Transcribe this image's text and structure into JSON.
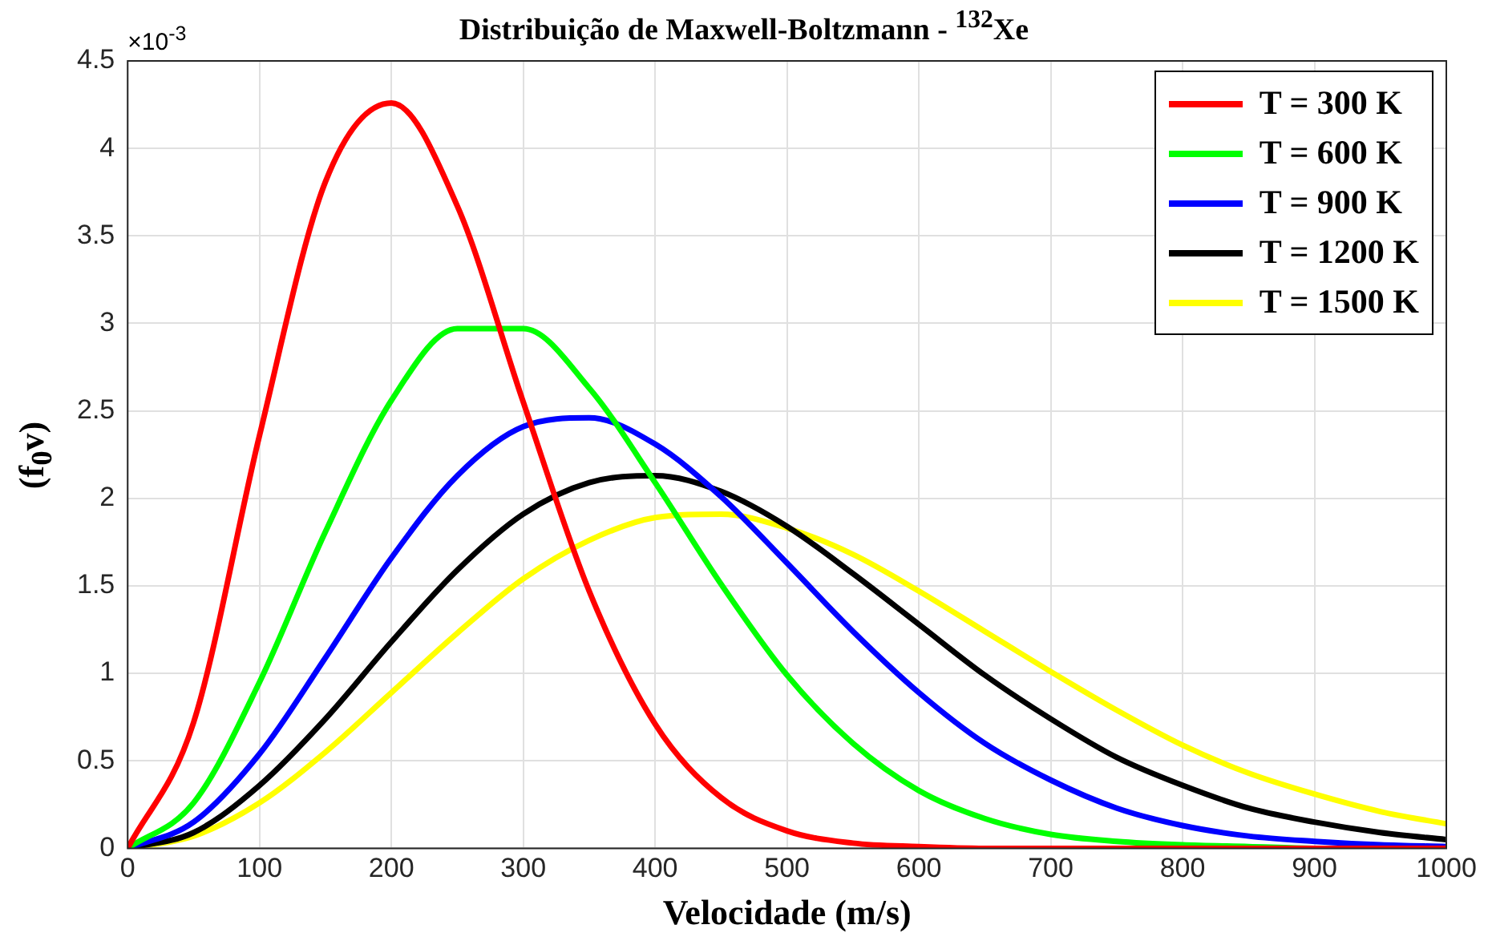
{
  "chart_data": {
    "type": "line",
    "title": "Distribuição de Maxwell-Boltzmann -  $^{132}$Xe",
    "xlabel": "Velocidade (m/s)",
    "ylabel": "(f$_{0}$v)",
    "annotations": [
      "×10$^{-3}$"
    ],
    "x": [
      0,
      50,
      100,
      150,
      200,
      250,
      300,
      350,
      400,
      450,
      500,
      550,
      600,
      650,
      700,
      750,
      800,
      850,
      900,
      950,
      1000
    ],
    "xlim": [
      0,
      1000
    ],
    "xticks": [
      0,
      100,
      200,
      300,
      400,
      500,
      600,
      700,
      800,
      900,
      1000
    ],
    "ylim": [
      0,
      4.5
    ],
    "yticks": [
      0,
      0.5,
      1,
      1.5,
      2,
      2.5,
      3,
      3.5,
      4,
      4.5
    ],
    "grid": true,
    "legend": "top right",
    "marker": "none",
    "line_style": "solid",
    "series": [
      {
        "name": "T = 300 K",
        "color": "#ff0000",
        "values": [
          0,
          0.72,
          2.36,
          3.81,
          4.26,
          3.67,
          2.55,
          1.47,
          0.71,
          0.29,
          0.1,
          0.03,
          0.01,
          0,
          0,
          0,
          0,
          0,
          0,
          0,
          0
        ]
      },
      {
        "name": "T = 600 K",
        "color": "#00ff00",
        "values": [
          0,
          0.26,
          0.95,
          1.81,
          2.56,
          2.97,
          2.97,
          2.63,
          2.09,
          1.51,
          0.99,
          0.6,
          0.33,
          0.17,
          0.08,
          0.04,
          0.02,
          0.01,
          0,
          0,
          0
        ]
      },
      {
        "name": "T = 900 K",
        "color": "#0000ff",
        "values": [
          0,
          0.15,
          0.54,
          1.09,
          1.66,
          2.13,
          2.41,
          2.46,
          2.31,
          2.01,
          1.63,
          1.24,
          0.89,
          0.6,
          0.39,
          0.23,
          0.13,
          0.07,
          0.04,
          0.02,
          0.01
        ]
      },
      {
        "name": "T = 1200 K",
        "color": "#000000",
        "values": [
          0,
          0.09,
          0.36,
          0.74,
          1.18,
          1.59,
          1.91,
          2.09,
          2.13,
          2.04,
          1.84,
          1.57,
          1.28,
          0.99,
          0.74,
          0.52,
          0.36,
          0.23,
          0.15,
          0.09,
          0.05
        ]
      },
      {
        "name": "T = 1500 K",
        "color": "#ffff00",
        "values": [
          0,
          0.07,
          0.26,
          0.55,
          0.89,
          1.23,
          1.54,
          1.76,
          1.89,
          1.91,
          1.83,
          1.68,
          1.47,
          1.24,
          1.01,
          0.79,
          0.59,
          0.43,
          0.31,
          0.21,
          0.14
        ]
      }
    ]
  }
}
